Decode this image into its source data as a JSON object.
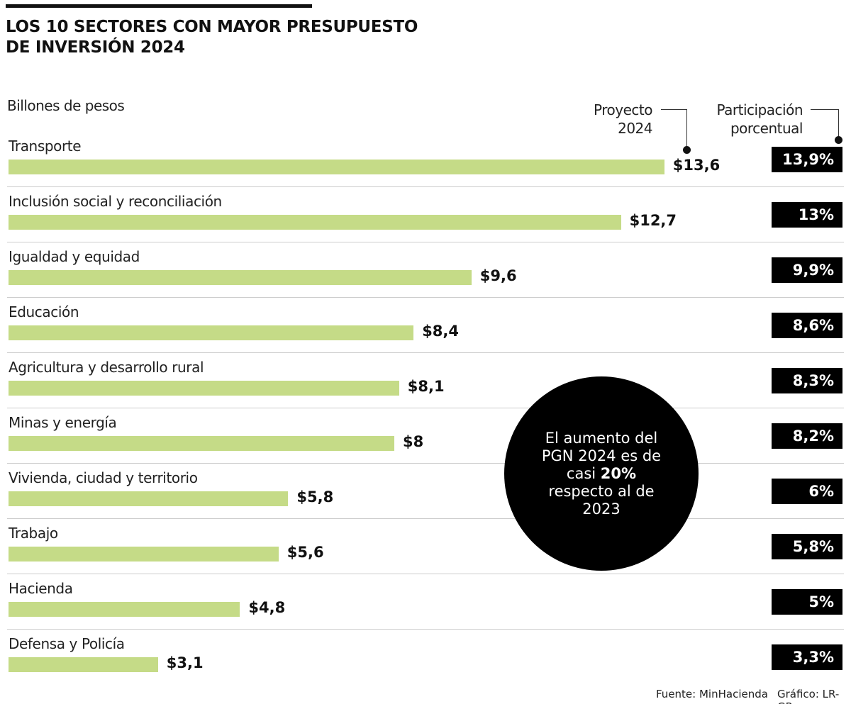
{
  "chart_data": {
    "type": "bar",
    "title": "LOS 10 SECTORES CON MAYOR PRESUPUESTO DE INVERSIÓN 2024",
    "unit_label": "Billones de pesos",
    "column_headers": {
      "value": "Proyecto 2024",
      "share": "Participación porcentual"
    },
    "categories": [
      "Transporte",
      "Inclusión social y reconciliación",
      "Igualdad y equidad",
      "Educación",
      "Agricultura y desarrollo rural",
      "Minas y energía",
      "Vivienda, ciudad y territorio",
      "Trabajo",
      "Hacienda",
      "Defensa y Policía"
    ],
    "values": [
      13.6,
      12.7,
      9.6,
      8.4,
      8.1,
      8,
      5.8,
      5.6,
      4.8,
      3.1
    ],
    "value_labels": [
      "$13,6",
      "$12,7",
      "$9,6",
      "$8,4",
      "$8,1",
      "$8",
      "$5,8",
      "$5,6",
      "$4,8",
      "$3,1"
    ],
    "shares": [
      "13,9%",
      "13%",
      "9,9%",
      "8,6%",
      "8,3%",
      "8,2%",
      "6%",
      "5,8%",
      "5%",
      "3,3%"
    ],
    "bar_color": "#c5db87",
    "orientation": "horizontal"
  },
  "callout": {
    "line1": "El aumento del",
    "line2": "PGN 2024 es de",
    "line3_pre": "casi ",
    "line3_bold": "20%",
    "line4": "respecto al de",
    "line5": "2023"
  },
  "footer": {
    "source": "Fuente: MinHacienda",
    "credit": "Gráfico: LR-GR"
  }
}
